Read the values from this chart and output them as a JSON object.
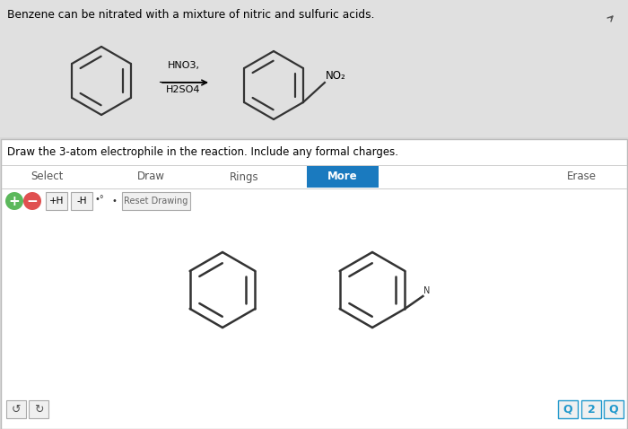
{
  "bg_color": "#d8d8d8",
  "top_bg": "#e8e8e8",
  "top_text": "Benzene can be nitrated with a mixture of nitric and sulfuric acids.",
  "reaction_above": "HNO3,",
  "reaction_below": "H2SO4",
  "no2_label": "NO₂",
  "panel_bg": "#ffffff",
  "panel_border": "#bbbbbb",
  "panel_question": "Draw the 3-atom electrophile in the reaction. Include any formal charges.",
  "toolbar_items": [
    "Select",
    "Draw",
    "Rings",
    "More",
    "Erase"
  ],
  "toolbar_active": "More",
  "toolbar_active_color": "#1a7abf",
  "plus_btn_color": "#5cb85c",
  "minus_btn_color": "#e05050",
  "sub_ring_color": "#444444",
  "zoom_btn_border": "#2299cc",
  "zoom_labels": [
    "Q",
    "2",
    "Q"
  ]
}
